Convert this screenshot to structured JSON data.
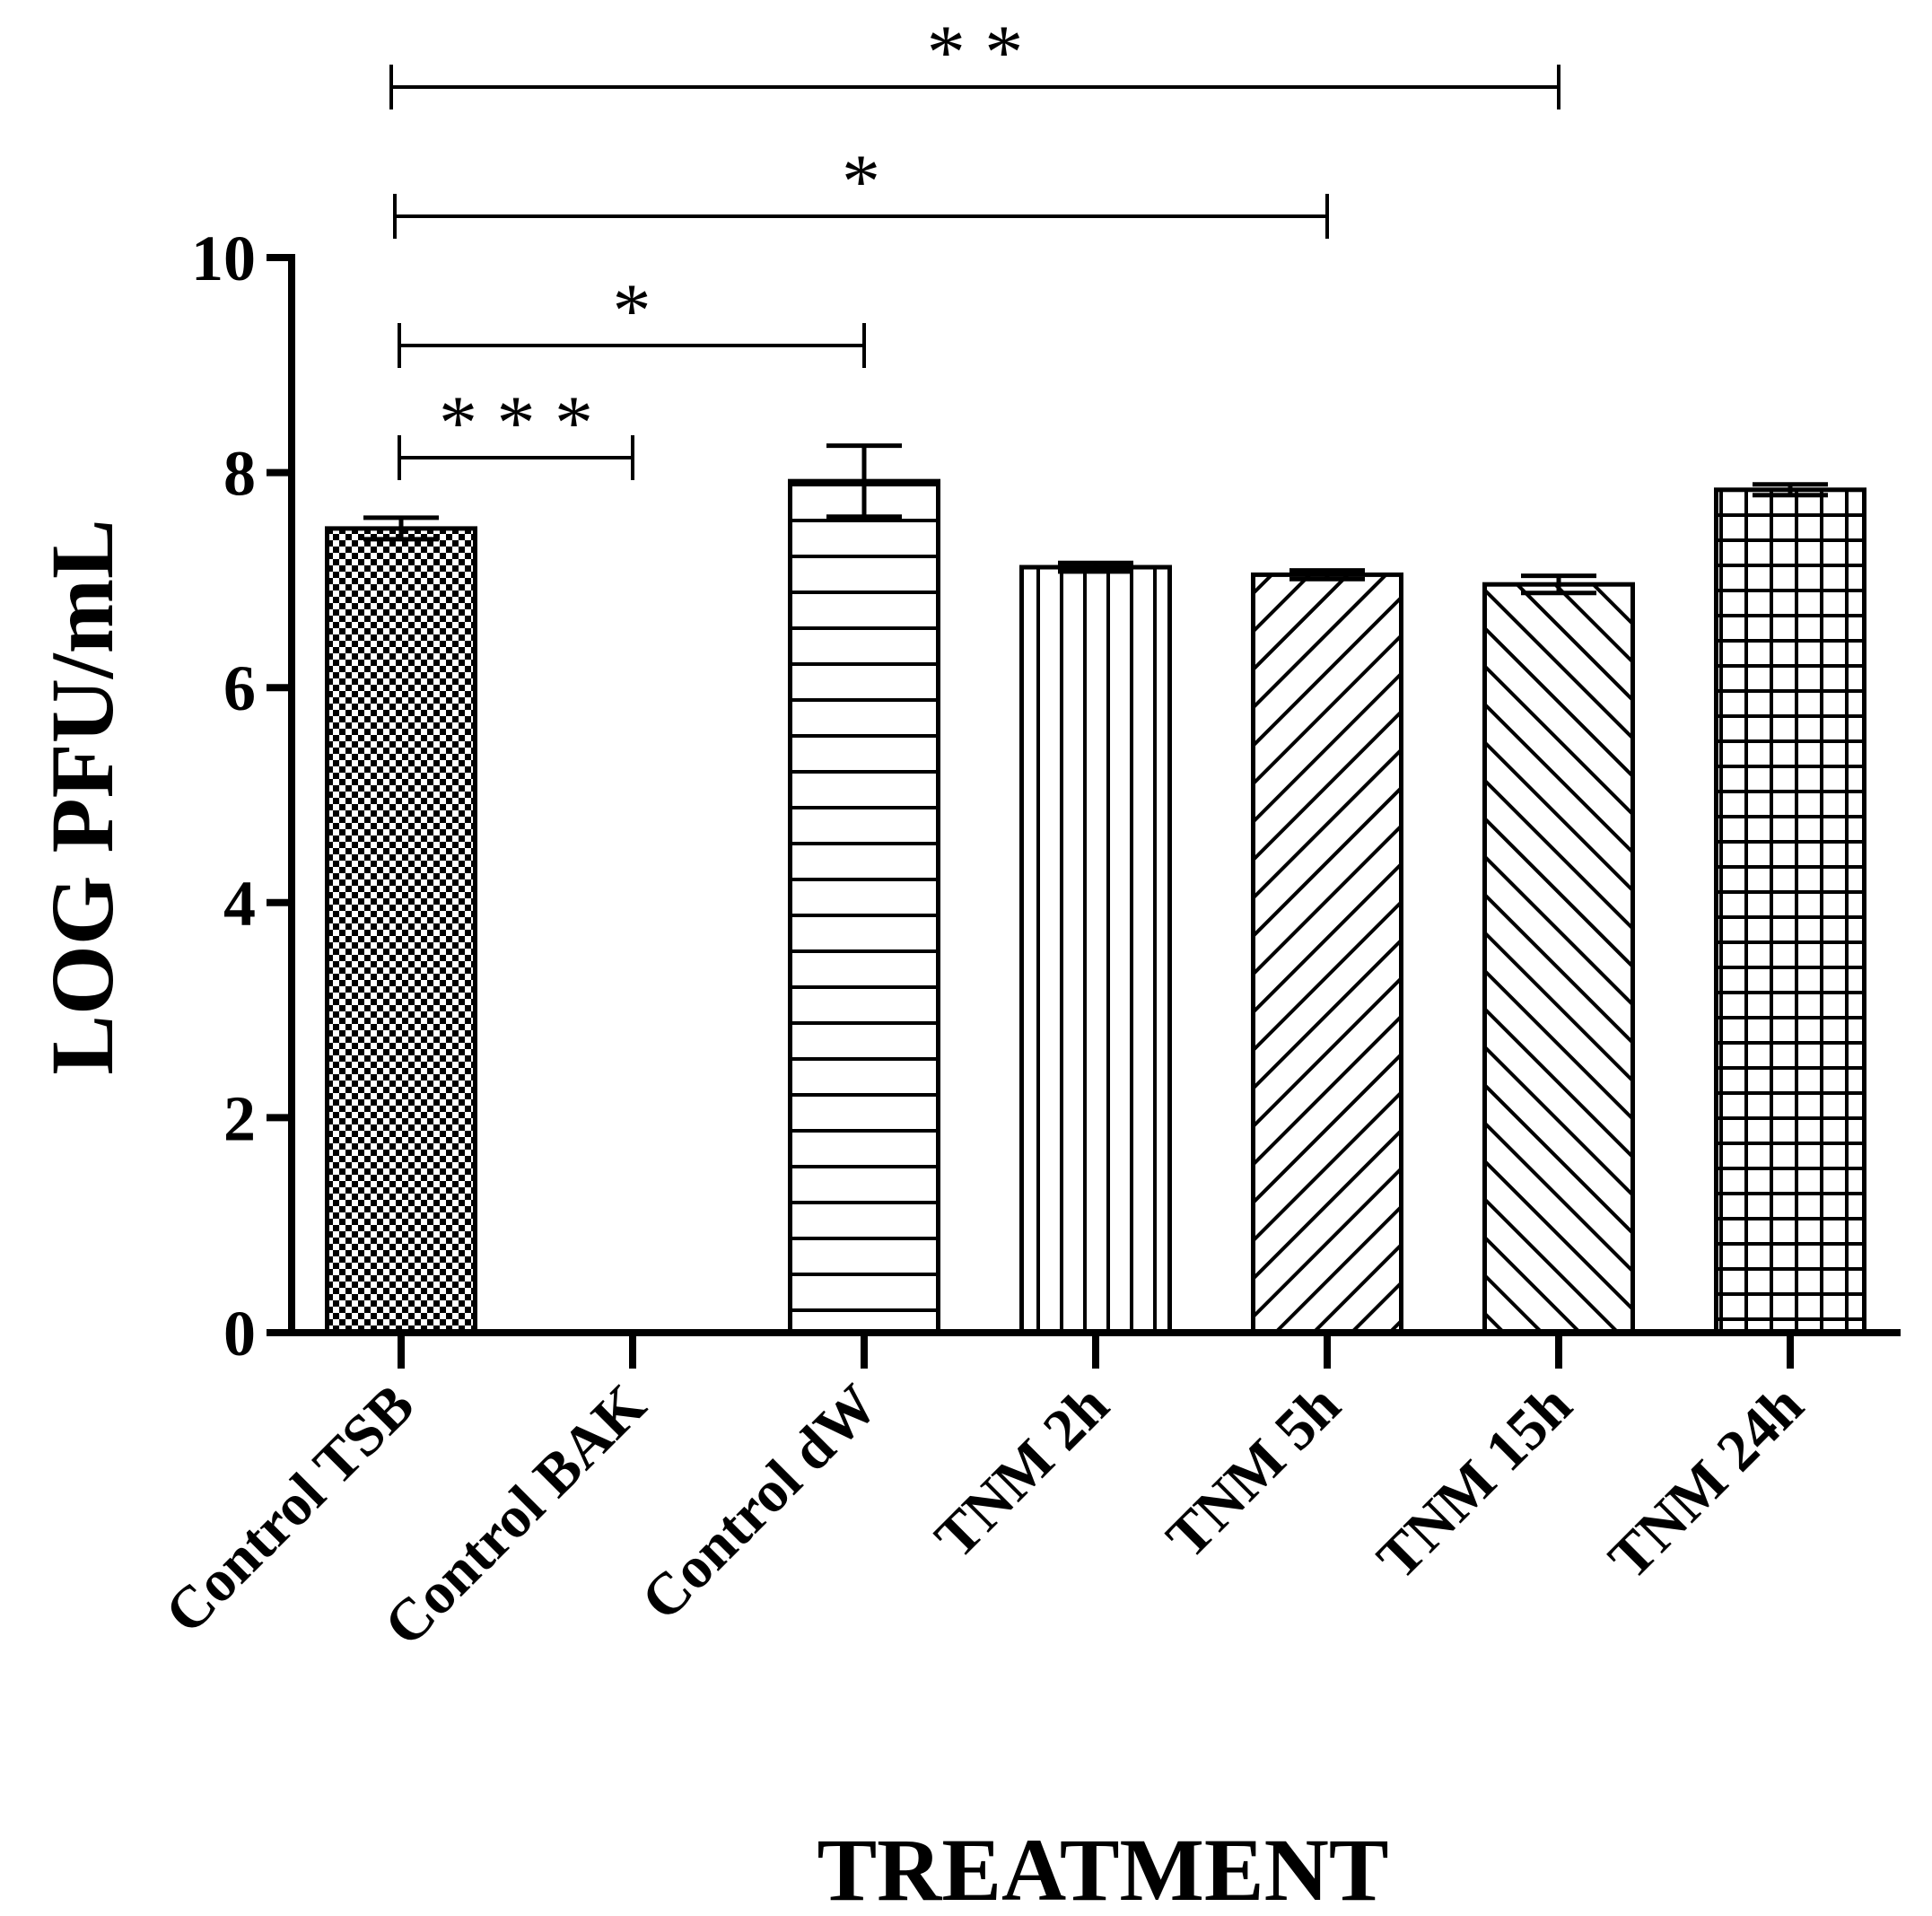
{
  "chart_data": {
    "type": "bar",
    "title": "",
    "xlabel": "TREATMENT",
    "ylabel": "LOG PFU/mL",
    "ylim": [
      0,
      10
    ],
    "yticks": [
      0,
      2,
      4,
      6,
      8,
      10
    ],
    "categories": [
      "Control TSB",
      "Control BAK",
      "Control dW",
      "TNM 2h",
      "TNM 5h",
      "TNM 15h",
      "TNM 24h"
    ],
    "values": [
      7.48,
      0,
      7.92,
      7.12,
      7.05,
      6.96,
      7.84
    ],
    "errors": [
      0.1,
      0,
      0.33,
      0.04,
      0.04,
      0.08,
      0.05
    ],
    "patterns": [
      "checker",
      "none",
      "hlines",
      "vlines",
      "diag-up",
      "diag-down",
      "grid"
    ],
    "significance": [
      {
        "from": 0,
        "to": 1,
        "label": "***"
      },
      {
        "from": 0,
        "to": 2,
        "label": "*"
      },
      {
        "from": 0,
        "to": 4,
        "label": "*"
      },
      {
        "from": 0,
        "to": 5,
        "label": "**"
      }
    ],
    "colors": {
      "ink": "#000000",
      "background": "#ffffff"
    }
  }
}
